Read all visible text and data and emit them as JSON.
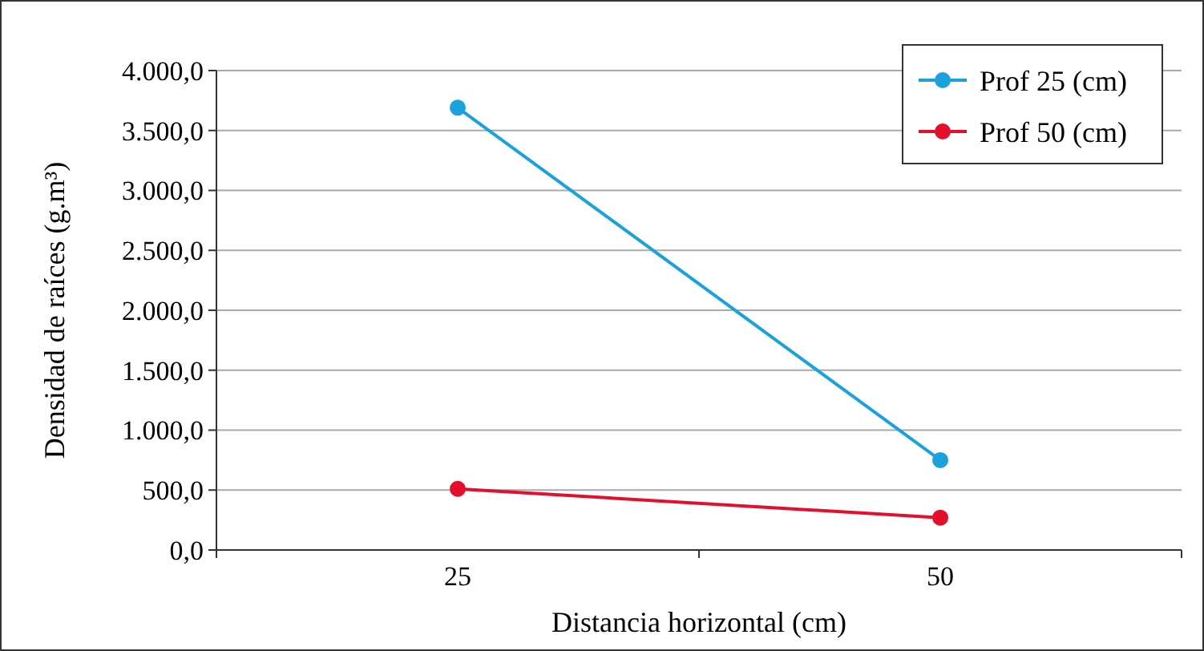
{
  "chart_data": {
    "type": "line",
    "xlabel": "Distancia horizontal (cm)",
    "ylabel": "Densidad de raíces (g.m³)",
    "categories": [
      "25",
      "50"
    ],
    "series": [
      {
        "name": "Prof 25 (cm)",
        "color": "#1ba1dc",
        "values": [
          3690,
          750
        ]
      },
      {
        "name": "Prof 50 (cm)",
        "color": "#e2102b",
        "values": [
          510,
          270
        ]
      }
    ],
    "ylim": [
      0,
      4000
    ],
    "yticks": [
      {
        "value": 0,
        "label": "0,0"
      },
      {
        "value": 500,
        "label": "500,0"
      },
      {
        "value": 1000,
        "label": "1.000,0"
      },
      {
        "value": 1500,
        "label": "1.500,0"
      },
      {
        "value": 2000,
        "label": "2.000,0"
      },
      {
        "value": 2500,
        "label": "2.500,0"
      },
      {
        "value": 3000,
        "label": "3.000,0"
      },
      {
        "value": 3500,
        "label": "3.500,0"
      },
      {
        "value": 4000,
        "label": "4.000,0"
      }
    ],
    "grid": "y",
    "legend": "top right",
    "marker": "circle",
    "line_style": "solid"
  }
}
